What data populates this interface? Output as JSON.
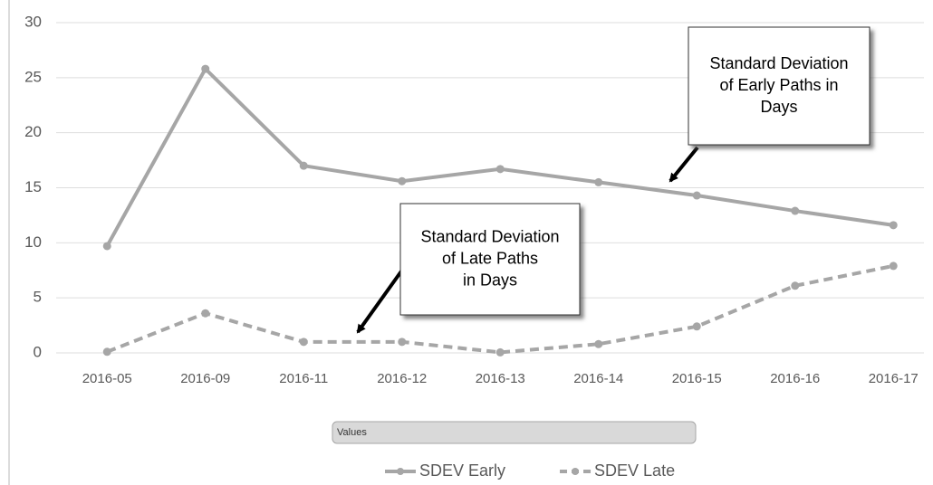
{
  "chart_data": {
    "type": "line",
    "categories": [
      "2016-05",
      "2016-09",
      "2016-11",
      "2016-12",
      "2016-13",
      "2016-14",
      "2016-15",
      "2016-16",
      "2016-17"
    ],
    "series": [
      {
        "name": "SDEV Early",
        "color": "#a6a6a6",
        "dash": false,
        "values": [
          9.7,
          25.8,
          17,
          15.6,
          16.7,
          15.5,
          14.3,
          12.9,
          11.6
        ]
      },
      {
        "name": "SDEV Late",
        "color": "#a6a6a6",
        "dash": true,
        "values": [
          0.1,
          3.6,
          1.0,
          1.0,
          0.05,
          0.8,
          2.4,
          6.1,
          7.9
        ]
      }
    ],
    "ylim": [
      0,
      30
    ],
    "yticks": [
      0,
      5,
      10,
      15,
      20,
      25,
      30
    ],
    "grid": true,
    "field_button": "Values",
    "annotations": [
      {
        "lines": [
          "Standard Deviation",
          "of Early Paths in",
          "Days"
        ]
      },
      {
        "lines": [
          "Standard Deviation",
          "of Late Paths",
          "in Days"
        ]
      }
    ]
  }
}
